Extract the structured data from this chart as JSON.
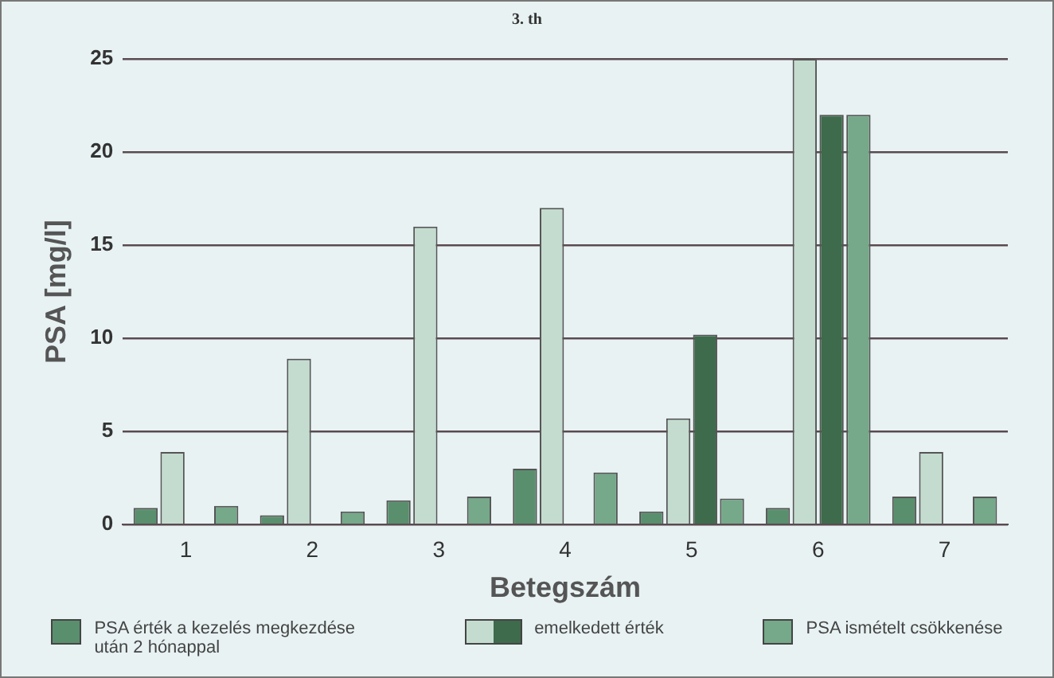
{
  "chart_data": {
    "type": "bar",
    "title": "3. th",
    "xlabel": "Betegszám",
    "ylabel": "PSA [mg/l]",
    "categories": [
      "1",
      "2",
      "3",
      "4",
      "5",
      "6",
      "7"
    ],
    "series": [
      {
        "name": "PSA érték a kezelés megkezdése után 2 hónappal",
        "color": "#5a8f6e",
        "values": [
          0.9,
          0.5,
          1.3,
          3.0,
          0.7,
          0.9,
          1.5
        ]
      },
      {
        "name": "emelkedett érték",
        "color": "#c4dccf",
        "values": [
          3.9,
          8.9,
          16,
          17,
          5.7,
          25,
          3.9
        ]
      },
      {
        "color": "#3d6b4c",
        "values": [
          null,
          null,
          null,
          null,
          10.2,
          22,
          null
        ]
      },
      {
        "name": "PSA ismételt csökkenése",
        "color": "#76a88a",
        "values": [
          1.0,
          0.7,
          1.5,
          2.8,
          1.4,
          22,
          1.5
        ]
      }
    ],
    "ylim": [
      0,
      25
    ],
    "yticks": [
      0,
      5,
      10,
      15,
      20,
      25
    ],
    "grid": "y",
    "legend": "bottom"
  }
}
